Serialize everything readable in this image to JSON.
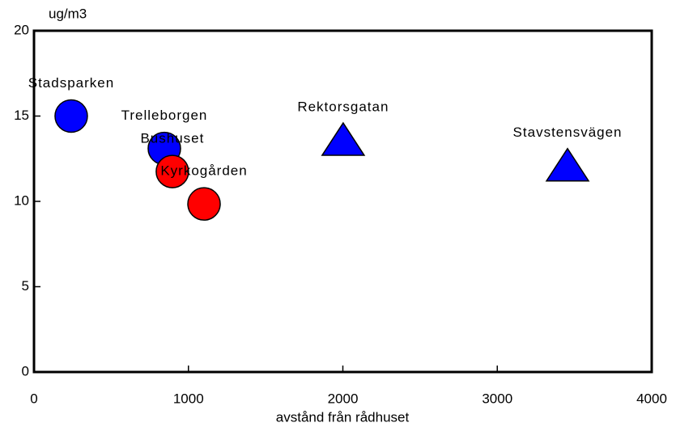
{
  "chart_data": {
    "type": "scatter",
    "xlabel": "avstånd från rådhuset",
    "ylabel": "ug/m3",
    "xlim": [
      0,
      4000
    ],
    "xticks": [
      0,
      1000,
      2000,
      3000,
      4000
    ],
    "ylim": [
      0,
      20
    ],
    "yticks": [
      0,
      5,
      10,
      15,
      20
    ],
    "points": [
      {
        "label": "Stadsparken",
        "x": 241,
        "y": 15.0,
        "color": "#0000ff",
        "marker": "circle"
      },
      {
        "label": "Trelleborgen",
        "x": 844,
        "y": 13.1,
        "color": "#0000ff",
        "marker": "circle"
      },
      {
        "label": "Bushuset",
        "x": 896,
        "y": 11.75,
        "color": "#ff0000",
        "marker": "circle"
      },
      {
        "label": "Kyrkogården",
        "x": 1101,
        "y": 9.85,
        "color": "#ff0000",
        "marker": "circle"
      },
      {
        "label": "Rektorsgatan",
        "x": 2002,
        "y": 13.6,
        "color": "#0000ff",
        "marker": "triangle"
      },
      {
        "label": "Stavstensvägen",
        "x": 3455,
        "y": 12.1,
        "color": "#0000ff",
        "marker": "triangle"
      }
    ]
  }
}
